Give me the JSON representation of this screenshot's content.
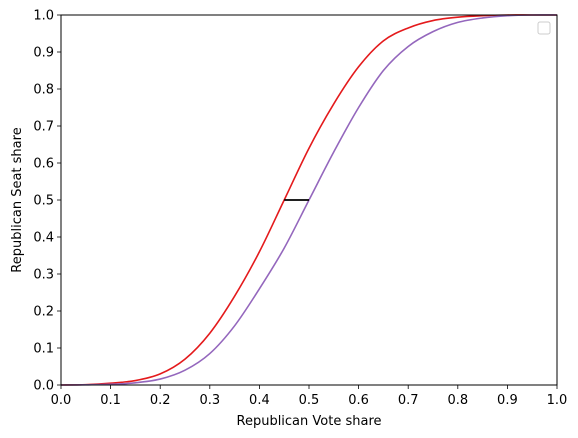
{
  "chart_data": {
    "type": "line",
    "title": "",
    "xlabel": "Republican Vote share",
    "ylabel": "Republican Seat share",
    "xlim": [
      0.0,
      1.0
    ],
    "ylim": [
      0.0,
      1.0
    ],
    "x_ticks": [
      "0.0",
      "0.1",
      "0.2",
      "0.3",
      "0.4",
      "0.5",
      "0.6",
      "0.7",
      "0.8",
      "0.9",
      "1.0"
    ],
    "y_ticks": [
      "0.0",
      "0.1",
      "0.2",
      "0.3",
      "0.4",
      "0.5",
      "0.6",
      "0.7",
      "0.8",
      "0.9",
      "1.0"
    ],
    "grid": false,
    "legend": {
      "placement": "top-right",
      "entries": []
    },
    "series": [
      {
        "color": "#e41a1c",
        "x": [
          0.0,
          0.05,
          0.1,
          0.15,
          0.2,
          0.25,
          0.3,
          0.35,
          0.4,
          0.45,
          0.5,
          0.55,
          0.6,
          0.65,
          0.7,
          0.75,
          0.8,
          0.85,
          0.9,
          0.95,
          1.0
        ],
        "y": [
          0.0,
          0.001,
          0.005,
          0.012,
          0.03,
          0.07,
          0.14,
          0.24,
          0.36,
          0.5,
          0.64,
          0.76,
          0.86,
          0.93,
          0.965,
          0.985,
          0.994,
          0.998,
          1.0,
          1.0,
          1.0
        ]
      },
      {
        "color": "#9467bd",
        "x": [
          0.0,
          0.05,
          0.1,
          0.15,
          0.2,
          0.25,
          0.3,
          0.35,
          0.4,
          0.45,
          0.5,
          0.55,
          0.6,
          0.65,
          0.7,
          0.75,
          0.8,
          0.85,
          0.9,
          0.95,
          1.0
        ],
        "y": [
          0.0,
          0.0005,
          0.002,
          0.006,
          0.016,
          0.04,
          0.085,
          0.16,
          0.26,
          0.37,
          0.5,
          0.63,
          0.75,
          0.85,
          0.915,
          0.955,
          0.98,
          0.992,
          0.998,
          1.0,
          1.0
        ]
      }
    ],
    "annotations": [
      {
        "type": "hline",
        "color": "#000000",
        "y": 0.5,
        "x_start": 0.45,
        "x_end": 0.5
      }
    ]
  }
}
